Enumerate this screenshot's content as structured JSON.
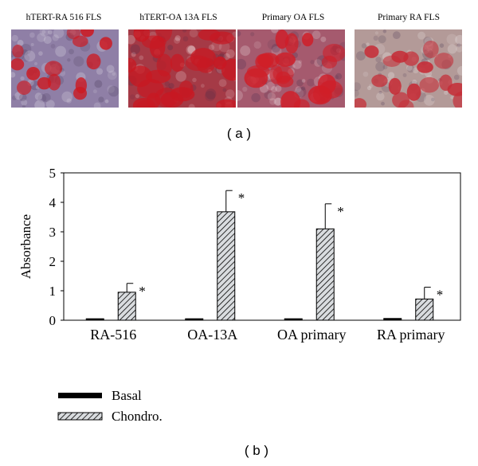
{
  "panel_a": {
    "label": "( a )",
    "images": [
      {
        "title": "hTERT-RA 516 FLS",
        "base": "#8f7fa6",
        "stain": "#cc1a22",
        "stain_amount": 0.35
      },
      {
        "title": "hTERT-OA 13A FLS",
        "base": "#a53a46",
        "stain": "#c81822",
        "stain_amount": 0.85
      },
      {
        "title": "Primary OA FLS",
        "base": "#a55a6e",
        "stain": "#d01e28",
        "stain_amount": 0.7
      },
      {
        "title": "Primary RA FLS",
        "base": "#b39a98",
        "stain": "#c62c36",
        "stain_amount": 0.5
      }
    ]
  },
  "panel_b": {
    "label": "( b )"
  },
  "chart_data": {
    "type": "bar",
    "categories": [
      "RA-516",
      "OA-13A",
      "OA primary",
      "RA primary"
    ],
    "series": [
      {
        "name": "Basal",
        "values": [
          0.05,
          0.05,
          0.05,
          0.06
        ],
        "errors": [
          0,
          0,
          0,
          0
        ],
        "significant": [
          false,
          false,
          false,
          false
        ],
        "fill": "#000000"
      },
      {
        "name": "Chondro.",
        "values": [
          0.95,
          3.68,
          3.1,
          0.72
        ],
        "errors": [
          0.3,
          0.72,
          0.85,
          0.4
        ],
        "significant": [
          true,
          true,
          true,
          true
        ],
        "fill": "hatched"
      }
    ],
    "significance_marker": "*",
    "ylabel": "Absorbance",
    "xlabel": "",
    "ylim": [
      0,
      5
    ],
    "yticks": [
      0,
      1,
      2,
      3,
      4,
      5
    ],
    "legend_position": "bottom-left"
  }
}
